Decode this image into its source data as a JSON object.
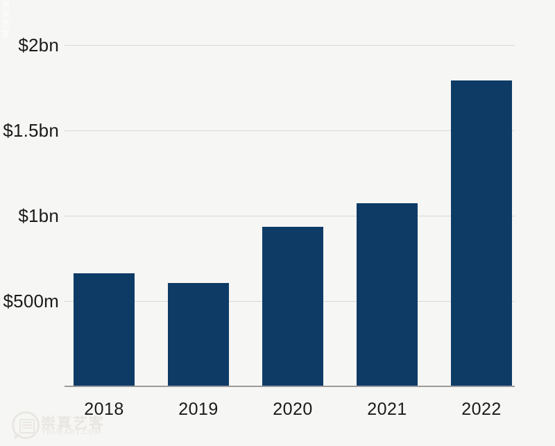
{
  "page": {
    "background": "#f6f6f4",
    "text_color": "#1a1a1a",
    "gridline_color": "#d8d8d8",
    "axis_color": "#9b9b9b"
  },
  "chart_data": {
    "type": "bar",
    "title": "",
    "xlabel": "",
    "ylabel": "",
    "categories": [
      "2018",
      "2019",
      "2020",
      "2021",
      "2022"
    ],
    "values": [
      660,
      600,
      930,
      1070,
      1790
    ],
    "values_unit": "USD millions",
    "ylim": [
      0,
      2000
    ],
    "yticks": [
      {
        "value": 500,
        "label": "$500m"
      },
      {
        "value": 1000,
        "label": "$1bn"
      },
      {
        "value": 1500,
        "label": "$1.5bn"
      },
      {
        "value": 2000,
        "label": "$2bn"
      }
    ],
    "grid": "horizontal",
    "legend": "none",
    "bar_color": "#0d3b66",
    "background": "#f6f6f4"
  },
  "watermark": {
    "name": "崇真艺客",
    "domain": "TRUEART.COM",
    "logo": "speech-bubble-document-icon"
  }
}
